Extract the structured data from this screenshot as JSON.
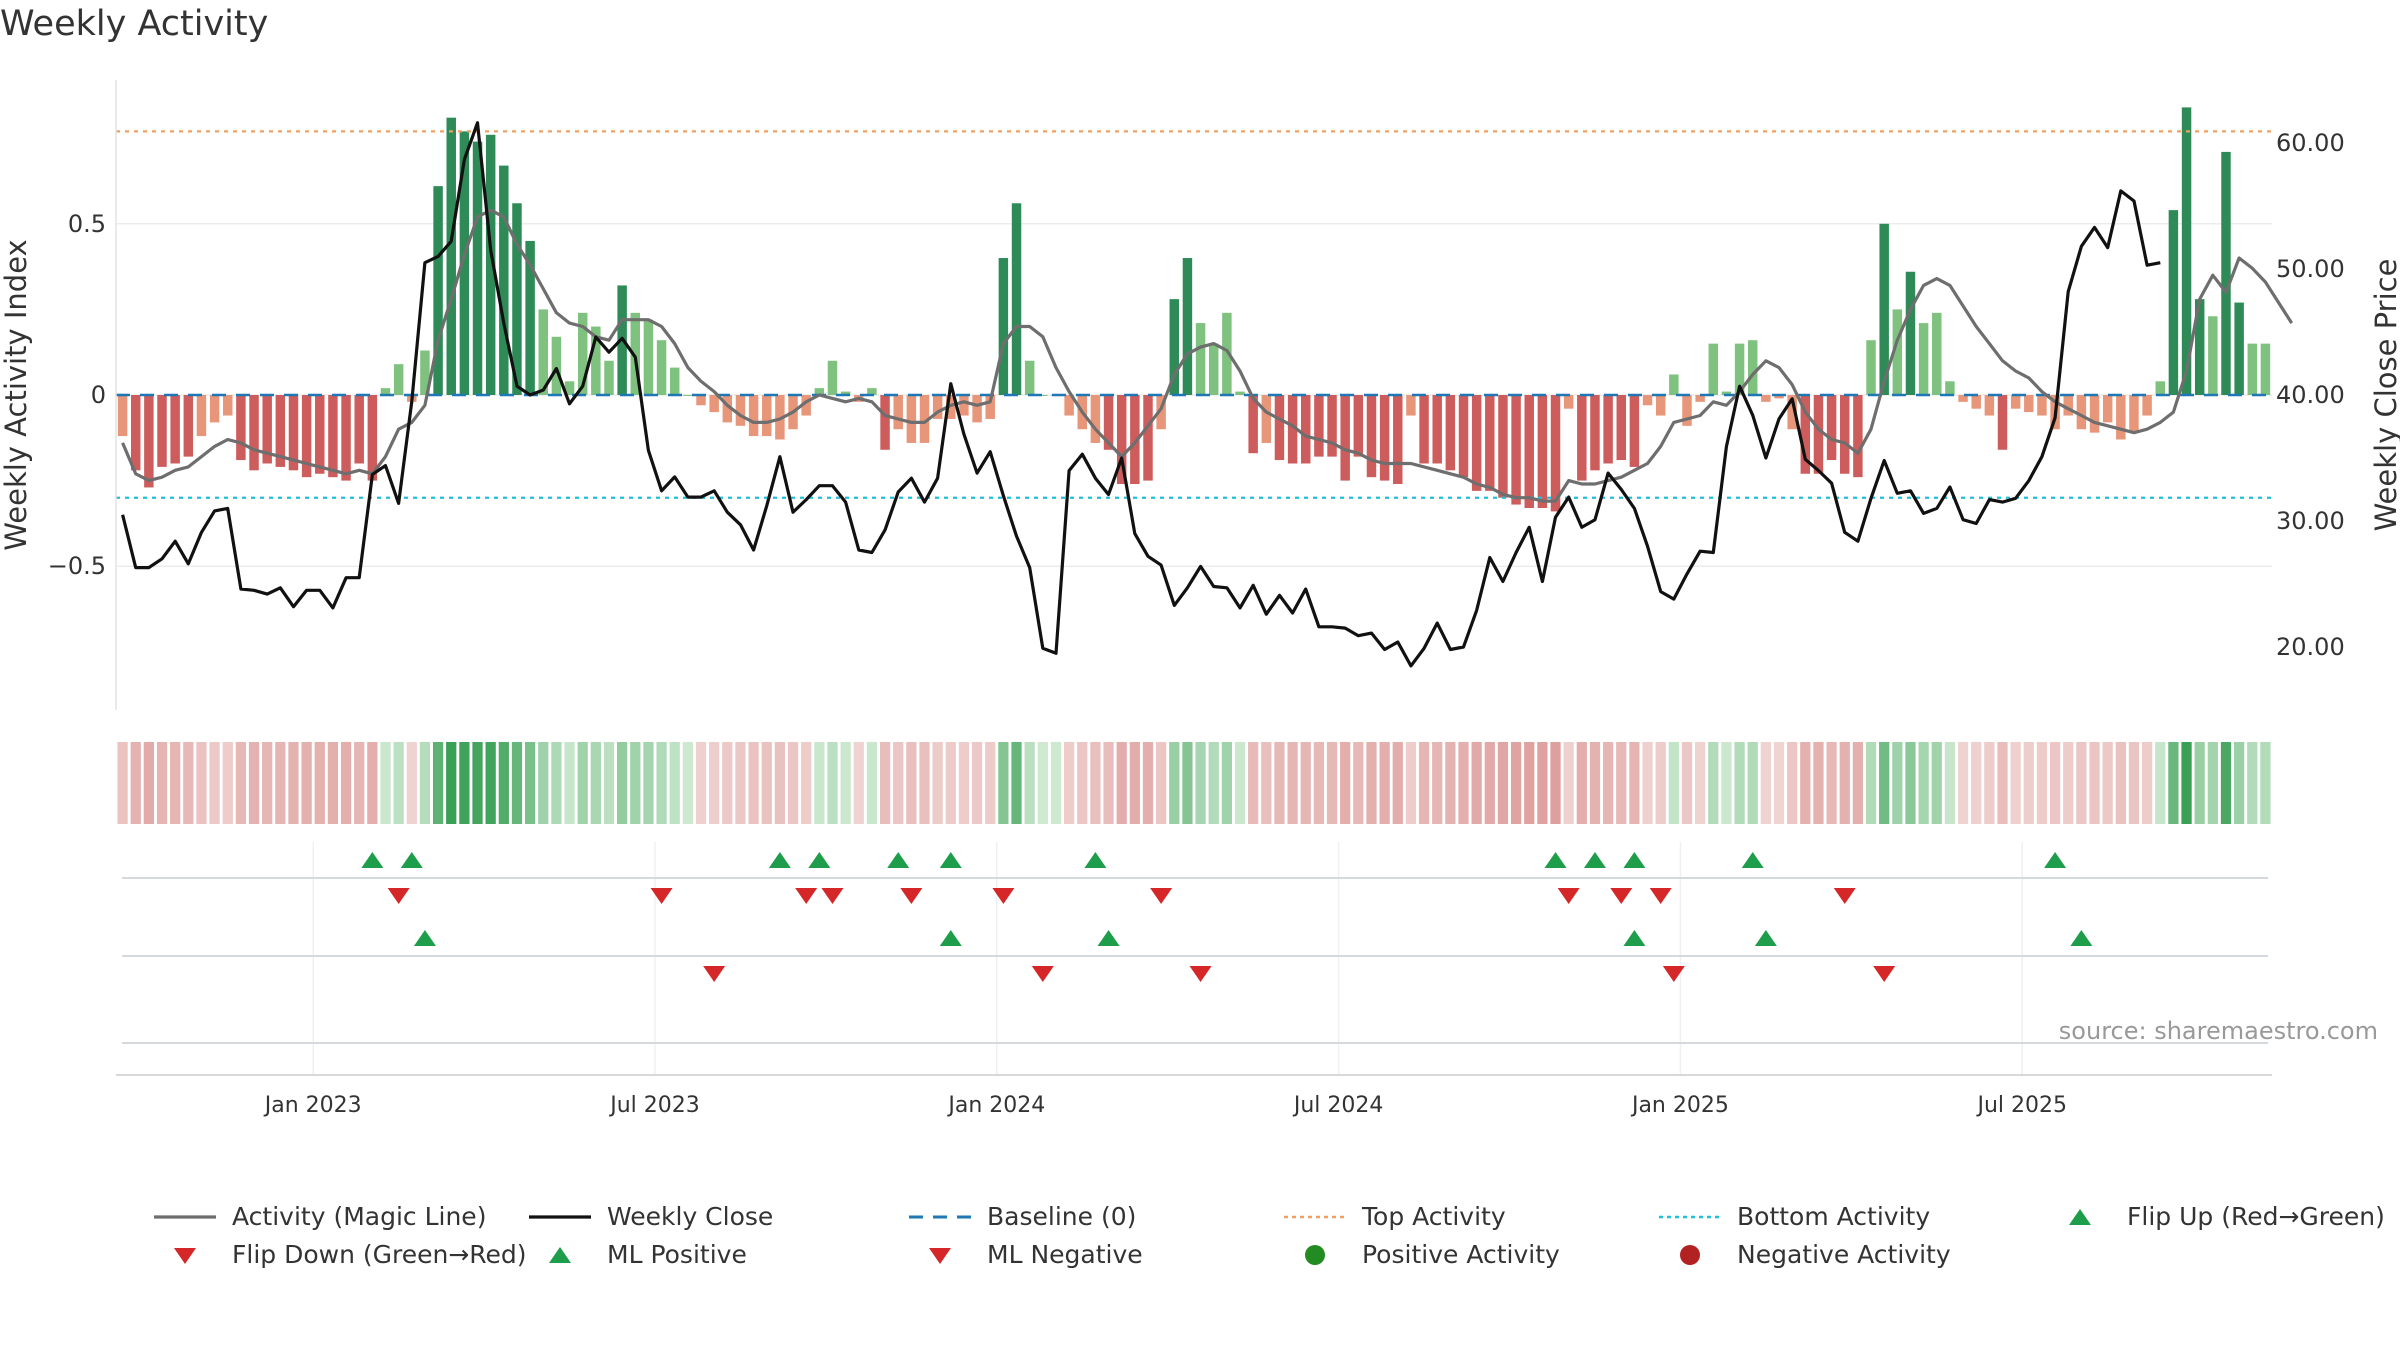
{
  "title": "Weekly Activity",
  "source": "source: sharemaestro.com",
  "chart_data": {
    "type": "bar",
    "title": "Weekly Activity",
    "ylabel_left": "Weekly Activity Index",
    "ylabel_right": "Weekly Close Price",
    "ylim_left": [
      -0.92,
      0.92
    ],
    "ylim_right": [
      15,
      65
    ],
    "yticks_left": [
      {
        "value": 0.5,
        "label": "0.5"
      },
      {
        "value": 0,
        "label": "0"
      },
      {
        "value": -0.5,
        "label": "−0.5"
      }
    ],
    "yticks_right": [
      {
        "value": 60,
        "label": "60.00"
      },
      {
        "value": 50,
        "label": "50.00"
      },
      {
        "value": 40,
        "label": "40.00"
      },
      {
        "value": 30,
        "label": "30.00"
      },
      {
        "value": 20,
        "label": "20.00"
      }
    ],
    "xticks": [
      {
        "label": "Jan 2023",
        "week": 15
      },
      {
        "label": "Jul 2023",
        "week": 41
      },
      {
        "label": "Jan 2024",
        "week": 67
      },
      {
        "label": "Jul 2024",
        "week": 93
      },
      {
        "label": "Jan 2025",
        "week": 119
      },
      {
        "label": "Jul 2025",
        "week": 145
      }
    ],
    "top_activity": 0.77,
    "bottom_activity": -0.3,
    "baseline": 0,
    "activity_bars": [
      -0.12,
      -0.22,
      -0.27,
      -0.21,
      -0.2,
      -0.18,
      -0.12,
      -0.08,
      -0.06,
      -0.19,
      -0.22,
      -0.2,
      -0.21,
      -0.22,
      -0.24,
      -0.23,
      -0.24,
      -0.25,
      -0.2,
      -0.25,
      0.02,
      0.09,
      -0.02,
      0.13,
      0.61,
      0.81,
      0.77,
      0.74,
      0.76,
      0.67,
      0.56,
      0.45,
      0.25,
      0.17,
      0.04,
      0.24,
      0.2,
      0.1,
      0.32,
      0.24,
      0.22,
      0.16,
      0.08,
      0,
      -0.03,
      -0.05,
      -0.08,
      -0.09,
      -0.12,
      -0.12,
      -0.13,
      -0.1,
      -0.06,
      0.02,
      0.1,
      0.01,
      -0.02,
      0.02,
      -0.16,
      -0.1,
      -0.14,
      -0.14,
      -0.07,
      -0.07,
      -0.06,
      -0.08,
      -0.07,
      0.4,
      0.56,
      0.1,
      0,
      0,
      -0.06,
      -0.1,
      -0.14,
      -0.16,
      -0.26,
      -0.26,
      -0.25,
      -0.1,
      0.28,
      0.4,
      0.21,
      0.15,
      0.24,
      0.01,
      -0.17,
      -0.14,
      -0.19,
      -0.2,
      -0.2,
      -0.18,
      -0.18,
      -0.25,
      -0.18,
      -0.24,
      -0.25,
      -0.26,
      -0.06,
      -0.2,
      -0.2,
      -0.22,
      -0.24,
      -0.28,
      -0.28,
      -0.3,
      -0.32,
      -0.33,
      -0.33,
      -0.34,
      -0.04,
      -0.25,
      -0.22,
      -0.2,
      -0.19,
      -0.21,
      -0.03,
      -0.06,
      0.06,
      -0.09,
      -0.02,
      0.15,
      0.01,
      0.15,
      0.16,
      -0.02,
      -0.01,
      -0.1,
      -0.23,
      -0.23,
      -0.19,
      -0.23,
      -0.24,
      0.16,
      0.5,
      0.25,
      0.36,
      0.21,
      0.24,
      0.04,
      -0.02,
      -0.04,
      -0.06,
      -0.16,
      -0.04,
      -0.05,
      -0.06,
      -0.1,
      -0.06,
      -0.1,
      -0.11,
      -0.08,
      -0.13,
      -0.11,
      -0.06,
      0.04,
      0.54,
      0.84,
      0.28,
      0.23,
      0.71,
      0.27,
      0.15,
      0.15
    ],
    "activity_line": [
      -0.14,
      -0.23,
      -0.25,
      -0.24,
      -0.22,
      -0.21,
      -0.18,
      -0.15,
      -0.13,
      -0.14,
      -0.16,
      -0.17,
      -0.18,
      -0.19,
      -0.2,
      -0.21,
      -0.22,
      -0.23,
      -0.22,
      -0.23,
      -0.18,
      -0.1,
      -0.08,
      -0.03,
      0.16,
      0.28,
      0.41,
      0.52,
      0.54,
      0.52,
      0.44,
      0.38,
      0.31,
      0.24,
      0.21,
      0.2,
      0.17,
      0.16,
      0.22,
      0.22,
      0.22,
      0.2,
      0.15,
      0.08,
      0.04,
      0.01,
      -0.03,
      -0.06,
      -0.08,
      -0.08,
      -0.07,
      -0.05,
      -0.02,
      0,
      -0.01,
      -0.02,
      -0.01,
      -0.02,
      -0.06,
      -0.07,
      -0.08,
      -0.08,
      -0.05,
      -0.03,
      -0.02,
      -0.03,
      -0.02,
      0.15,
      0.2,
      0.2,
      0.17,
      0.08,
      0.01,
      -0.05,
      -0.1,
      -0.14,
      -0.18,
      -0.14,
      -0.09,
      -0.04,
      0.06,
      0.12,
      0.14,
      0.15,
      0.13,
      0.07,
      -0.01,
      -0.05,
      -0.07,
      -0.09,
      -0.12,
      -0.13,
      -0.14,
      -0.16,
      -0.17,
      -0.19,
      -0.2,
      -0.2,
      -0.2,
      -0.21,
      -0.22,
      -0.23,
      -0.24,
      -0.26,
      -0.27,
      -0.29,
      -0.3,
      -0.3,
      -0.31,
      -0.31,
      -0.25,
      -0.26,
      -0.26,
      -0.25,
      -0.24,
      -0.22,
      -0.2,
      -0.15,
      -0.08,
      -0.07,
      -0.06,
      -0.02,
      -0.03,
      0.01,
      0.06,
      0.1,
      0.08,
      0.03,
      -0.05,
      -0.1,
      -0.13,
      -0.14,
      -0.17,
      -0.1,
      0.04,
      0.16,
      0.25,
      0.32,
      0.34,
      0.32,
      0.26,
      0.2,
      0.15,
      0.1,
      0.07,
      0.05,
      0.01,
      -0.02,
      -0.04,
      -0.06,
      -0.08,
      -0.09,
      -0.1,
      -0.11,
      -0.1,
      -0.08,
      -0.05,
      0.07,
      0.28,
      0.35,
      0.3,
      0.4,
      0.37,
      0.33,
      0.27,
      0.21
    ],
    "weekly_close": [
      30.5,
      26.3,
      26.3,
      27,
      28.4,
      26.6,
      29.1,
      30.8,
      31,
      24.6,
      24.5,
      24.2,
      24.7,
      23.2,
      24.5,
      24.5,
      23.1,
      25.5,
      25.5,
      33.7,
      34.4,
      31.4,
      39.5,
      50.5,
      51,
      52.2,
      58.7,
      61.6,
      51.5,
      45.7,
      40.7,
      40,
      40.4,
      42.1,
      39.3,
      40.7,
      44.6,
      43.4,
      44.5,
      43,
      35.6,
      32.4,
      33.5,
      31.9,
      31.9,
      32.4,
      30.7,
      29.7,
      27.7,
      31.2,
      35.1,
      30.7,
      31.7,
      32.8,
      32.8,
      31.5,
      27.7,
      27.5,
      29.3,
      32.3,
      33.4,
      31.5,
      33.4,
      40.9,
      36.9,
      33.8,
      35.5,
      32,
      28.8,
      26.3,
      19.9,
      19.5,
      34,
      35.3,
      33.4,
      32.1,
      35,
      29,
      27.2,
      26.5,
      23.3,
      24.7,
      26.4,
      24.8,
      24.7,
      23.1,
      24.9,
      22.6,
      24.1,
      22.7,
      24.6,
      21.6,
      21.6,
      21.5,
      20.9,
      21.1,
      19.8,
      20.4,
      18.5,
      19.9,
      21.9,
      19.8,
      20,
      22.9,
      27.1,
      25.2,
      27.5,
      29.5,
      25.2,
      30.3,
      31.9,
      29.5,
      30.1,
      33.8,
      32.5,
      31,
      28,
      24.4,
      23.8,
      25.8,
      27.6,
      27.5,
      35.9,
      40.7,
      38.4,
      35,
      38.1,
      39.7,
      34.9,
      34,
      33,
      29.1,
      28.4,
      31.8,
      34.8,
      32.2,
      32.4,
      30.6,
      31,
      32.7,
      30.1,
      29.8,
      31.7,
      31.5,
      31.8,
      33.2,
      35.1,
      38.2,
      48.2,
      51.8,
      53.3,
      51.7,
      56.2,
      55.4,
      50.3,
      50.5
    ],
    "ml_positive_weeks": [
      23,
      63,
      75,
      115,
      125,
      149
    ],
    "ml_negative_weeks": [
      45,
      70,
      82,
      118,
      134
    ],
    "flip_up_weeks": [
      19,
      22,
      50,
      53,
      59,
      63,
      74,
      109,
      112,
      115,
      124,
      147
    ],
    "flip_down_weeks": [
      21,
      41,
      52,
      54,
      60,
      67,
      79,
      110,
      114,
      117,
      131
    ],
    "legend": [
      {
        "label": "Activity (Magic Line)",
        "kind": "line",
        "color": "#6e6e6e"
      },
      {
        "label": "Weekly Close",
        "kind": "line",
        "color": "#111111"
      },
      {
        "label": "Baseline (0)",
        "kind": "dash",
        "color": "#1f77b4"
      },
      {
        "label": "Top Activity",
        "kind": "dot",
        "color": "#f0a060"
      },
      {
        "label": "Bottom Activity",
        "kind": "dot",
        "color": "#22c0d8"
      },
      {
        "label": "Flip Up (Red→Green)",
        "kind": "tri-up",
        "color": "#1e9e4a"
      },
      {
        "label": "Flip Down (Green→Red)",
        "kind": "tri-down",
        "color": "#d62728"
      },
      {
        "label": "ML Positive",
        "kind": "tri-up",
        "color": "#1e9e4a"
      },
      {
        "label": "ML Negative",
        "kind": "tri-down",
        "color": "#d62728"
      },
      {
        "label": "Positive Activity",
        "kind": "circle",
        "color": "#228b22"
      },
      {
        "label": "Negative Activity",
        "kind": "circle",
        "color": "#b22222"
      }
    ],
    "colors": {
      "pos_strong": "#2e8b57",
      "pos_light": "#7fc27f",
      "neg_strong": "#cd5c5c",
      "neg_light": "#e8967a",
      "magic_line": "#6e6e6e",
      "close_line": "#111111",
      "baseline": "#1f77b4",
      "top": "#f0a060",
      "bottom": "#22c0d8",
      "tri_up": "#1e9e4a",
      "tri_down": "#d62728"
    }
  }
}
